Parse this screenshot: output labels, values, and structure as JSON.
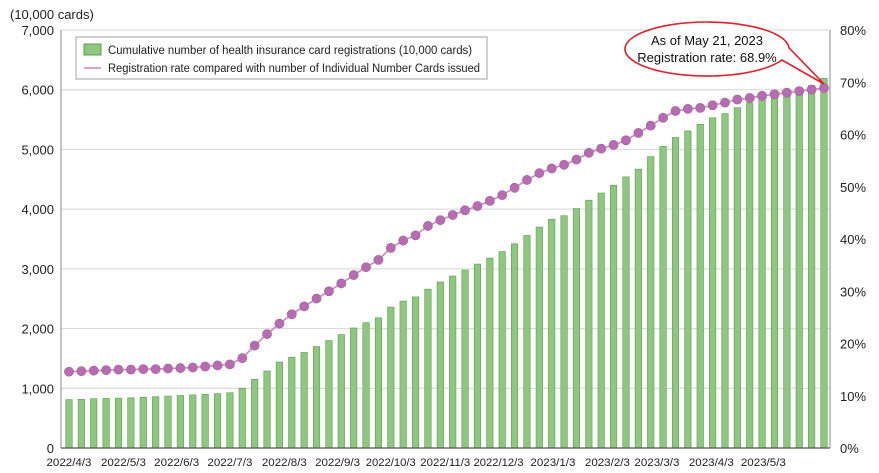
{
  "chart_data": {
    "type": "bar+line",
    "unit_label": "(10,000 cards)",
    "legend": {
      "bar_label": "Cumulative number of health insurance card registrations (10,000 cards)",
      "line_label": "Registration rate compared with number of Individual Number Cards issued",
      "placement": "top-left"
    },
    "annotation": {
      "line1": "As of May 21, 2023",
      "line2": "Registration rate: 68.9%"
    },
    "colors": {
      "bar_fill": "#8fc680",
      "bar_stroke": "#5b9e4c",
      "line": "#c889c0",
      "marker": "#b56db0",
      "annotation_border": "#e0202a",
      "gridline": "#d4d4d4",
      "axis": "#8a8a8a"
    },
    "y_left": {
      "min": 0,
      "max": 7000,
      "ticks": [
        "0",
        "1,000",
        "2,000",
        "3,000",
        "4,000",
        "5,000",
        "6,000",
        "7,000"
      ]
    },
    "y_right": {
      "min": 0,
      "max": 80,
      "ticks": [
        "0%",
        "10%",
        "20%",
        "30%",
        "40%",
        "50%",
        "60%",
        "70%",
        "80%"
      ]
    },
    "x_labels": [
      {
        "index": 0,
        "label": "2022/4/3"
      },
      {
        "index": 4.4,
        "label": "2022/5/3"
      },
      {
        "index": 8.7,
        "label": "2022/6/3"
      },
      {
        "index": 13,
        "label": "2022/7/3"
      },
      {
        "index": 17.4,
        "label": "2022/8/3"
      },
      {
        "index": 21.7,
        "label": "2022/9/3"
      },
      {
        "index": 26,
        "label": "2022/10/3"
      },
      {
        "index": 30.4,
        "label": "2022/11/3"
      },
      {
        "index": 34.7,
        "label": "2022/12/3"
      },
      {
        "index": 39.1,
        "label": "2023/1/3"
      },
      {
        "index": 43.5,
        "label": "2023/2/3"
      },
      {
        "index": 47.5,
        "label": "2023/3/3"
      },
      {
        "index": 51.9,
        "label": "2023/4/3"
      },
      {
        "index": 56.1,
        "label": "2023/5/3"
      }
    ],
    "series": [
      {
        "type": "bar",
        "axis": "left",
        "values": [
          810,
          815,
          825,
          830,
          835,
          840,
          850,
          860,
          870,
          880,
          890,
          900,
          910,
          925,
          1000,
          1150,
          1290,
          1440,
          1520,
          1600,
          1700,
          1800,
          1900,
          2010,
          2100,
          2180,
          2360,
          2460,
          2530,
          2660,
          2780,
          2880,
          2980,
          3080,
          3180,
          3290,
          3420,
          3560,
          3700,
          3830,
          3890,
          4010,
          4150,
          4270,
          4400,
          4540,
          4670,
          4880,
          5050,
          5200,
          5310,
          5420,
          5530,
          5600,
          5700,
          5780,
          5850,
          5910,
          5960,
          6010,
          6070,
          6190
        ]
      },
      {
        "type": "line",
        "axis": "right",
        "values": [
          14.6,
          14.7,
          14.8,
          14.9,
          15.0,
          15.0,
          15.1,
          15.1,
          15.2,
          15.3,
          15.4,
          15.6,
          15.8,
          16.0,
          17.2,
          19.6,
          21.8,
          23.8,
          25.6,
          27.1,
          28.6,
          30.0,
          31.5,
          33.1,
          34.6,
          36.0,
          38.3,
          39.7,
          40.7,
          42.5,
          43.6,
          44.6,
          45.5,
          46.3,
          47.3,
          48.4,
          49.8,
          51.3,
          52.6,
          53.5,
          54.2,
          55.2,
          56.5,
          57.3,
          58.0,
          58.9,
          60.3,
          61.7,
          63.2,
          64.5,
          64.9,
          65.1,
          65.6,
          66.1,
          66.7,
          67.0,
          67.4,
          67.7,
          68.0,
          68.3,
          68.6,
          68.9
        ]
      }
    ]
  }
}
